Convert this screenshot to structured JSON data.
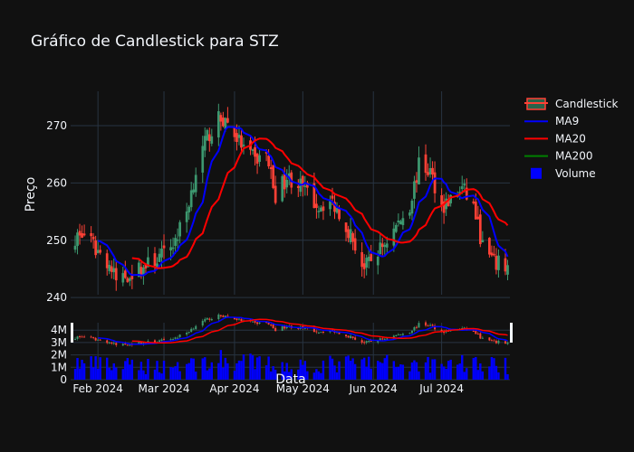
{
  "chart_data": {
    "type": "candlestick",
    "title": "Gráfico de Candlestick para STZ",
    "xlabel": "Data",
    "ylabel": "Preço",
    "x_range": [
      "2024-01-20",
      "2024-07-31"
    ],
    "x_ticks": [
      {
        "date": "2024-02-01",
        "label": "Feb 2024"
      },
      {
        "date": "2024-03-01",
        "label": "Mar 2024"
      },
      {
        "date": "2024-04-01",
        "label": "Apr 2024"
      },
      {
        "date": "2024-05-01",
        "label": "May 2024"
      },
      {
        "date": "2024-06-01",
        "label": "Jun 2024"
      },
      {
        "date": "2024-07-01",
        "label": "Jul 2024"
      }
    ],
    "price_axis": {
      "ylim": [
        240.5,
        276
      ],
      "ticks": [
        240,
        250,
        260,
        270
      ]
    },
    "volume_axis": {
      "ylim": [
        0,
        4600000
      ],
      "ticks": [
        0,
        1000000,
        2000000,
        3000000,
        4000000
      ],
      "tick_labels": [
        "0",
        "1M",
        "2M",
        "3M",
        "4M"
      ]
    },
    "close_anchors": [
      [
        "2024-01-22",
        250.5
      ],
      [
        "2024-01-26",
        251
      ],
      [
        "2024-01-31",
        248.5
      ],
      [
        "2024-02-05",
        246.5
      ],
      [
        "2024-02-09",
        243
      ],
      [
        "2024-02-14",
        244
      ],
      [
        "2024-02-20",
        245
      ],
      [
        "2024-02-26",
        246.5
      ],
      [
        "2024-03-01",
        247.5
      ],
      [
        "2024-03-06",
        250
      ],
      [
        "2024-03-11",
        255
      ],
      [
        "2024-03-15",
        262
      ],
      [
        "2024-03-20",
        268
      ],
      [
        "2024-03-25",
        271
      ],
      [
        "2024-03-28",
        271
      ],
      [
        "2024-04-02",
        268
      ],
      [
        "2024-04-05",
        266
      ],
      [
        "2024-04-10",
        264
      ],
      [
        "2024-04-15",
        265
      ],
      [
        "2024-04-19",
        258
      ],
      [
        "2024-04-24",
        261
      ],
      [
        "2024-04-29",
        260
      ],
      [
        "2024-05-03",
        258
      ],
      [
        "2024-05-08",
        256
      ],
      [
        "2024-05-13",
        257
      ],
      [
        "2024-05-17",
        255
      ],
      [
        "2024-05-22",
        251
      ],
      [
        "2024-05-28",
        245
      ],
      [
        "2024-06-03",
        248
      ],
      [
        "2024-06-07",
        250
      ],
      [
        "2024-06-12",
        253
      ],
      [
        "2024-06-17",
        256
      ],
      [
        "2024-06-21",
        263
      ],
      [
        "2024-06-26",
        262
      ],
      [
        "2024-07-01",
        256
      ],
      [
        "2024-07-05",
        257
      ],
      [
        "2024-07-10",
        259
      ],
      [
        "2024-07-15",
        256
      ],
      [
        "2024-07-19",
        249
      ],
      [
        "2024-07-24",
        246
      ],
      [
        "2024-07-30",
        245.5
      ]
    ],
    "volume_anchors": [
      [
        "2024-01-22",
        1500000
      ],
      [
        "2024-02-12",
        1200000
      ],
      [
        "2024-03-04",
        1300000
      ],
      [
        "2024-03-25",
        1700000
      ],
      [
        "2024-04-15",
        1400000
      ],
      [
        "2024-05-06",
        1300000
      ],
      [
        "2024-05-27",
        1500000
      ],
      [
        "2024-06-17",
        1400000
      ],
      [
        "2024-07-08",
        1600000
      ],
      [
        "2024-07-30",
        1200000
      ]
    ],
    "series": [
      {
        "name": "Candlestick",
        "type": "candlestick",
        "increasing_color": "#3D9970",
        "decreasing_color": "#FF4136"
      },
      {
        "name": "MA9",
        "type": "line",
        "window": 9,
        "color": "#0000ff"
      },
      {
        "name": "MA20",
        "type": "line",
        "window": 20,
        "color": "#ff0000"
      },
      {
        "name": "MA200",
        "type": "line",
        "window": 200,
        "color": "#008000"
      },
      {
        "name": "Volume",
        "type": "bar",
        "color": "#0000ff"
      }
    ],
    "legend_position": "top-right",
    "grid": true
  },
  "colors": {
    "background": "#111111",
    "grid": "#283442",
    "text": "#f2f5fa",
    "increasing": "#3D9970",
    "decreasing": "#FF4136",
    "ma9": "#0000ff",
    "ma20": "#ff0000",
    "ma200": "#008000",
    "volume": "#0000ff"
  }
}
